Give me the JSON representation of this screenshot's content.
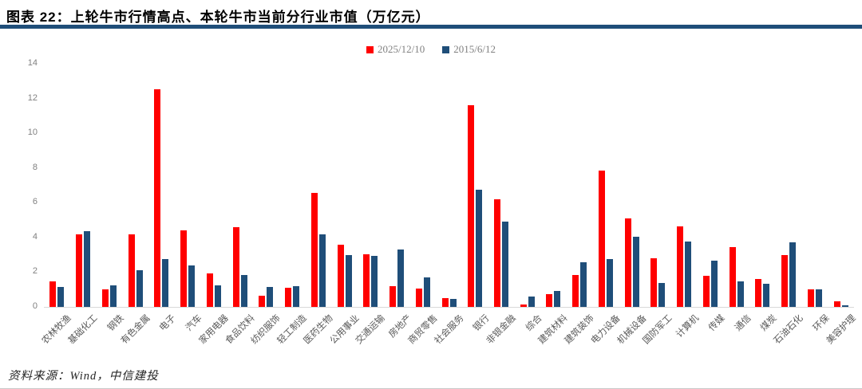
{
  "header": {
    "title": "图表 22：上轮牛市行情高点、本轮牛市当前分行业市值（万亿元）"
  },
  "footer": {
    "source": "资料来源：Wind，中信建投"
  },
  "colors": {
    "accent_red": "#FF0000",
    "accent_blue": "#1F4E79",
    "header_rule": "#1F4E79",
    "axis_text": "#808080",
    "baseline": "#D9D9D9"
  },
  "chart_data": {
    "type": "bar",
    "title": "图表 22：上轮牛市行情高点、本轮牛市当前分行业市值（万亿元）",
    "xlabel": "",
    "ylabel": "",
    "ylim": [
      0,
      14
    ],
    "yticks": [
      0,
      2,
      4,
      6,
      8,
      10,
      12,
      14
    ],
    "grid": false,
    "legend_position": "top-center",
    "categories": [
      "农林牧渔",
      "基础化工",
      "钢铁",
      "有色金属",
      "电子",
      "汽车",
      "家用电器",
      "食品饮料",
      "纺织服饰",
      "轻工制造",
      "医药生物",
      "公用事业",
      "交通运输",
      "房地产",
      "商贸零售",
      "社会服务",
      "银行",
      "非银金融",
      "综合",
      "建筑材料",
      "建筑装饰",
      "电力设备",
      "机械设备",
      "国防军工",
      "计算机",
      "传媒",
      "通信",
      "煤炭",
      "石油石化",
      "环保",
      "美容护理"
    ],
    "series": [
      {
        "name": "2025/12/10",
        "color": "#FF0000",
        "values": [
          1.45,
          4.2,
          1.0,
          4.2,
          12.55,
          4.4,
          1.95,
          4.6,
          0.65,
          1.1,
          6.55,
          3.6,
          3.05,
          1.2,
          1.05,
          0.5,
          11.6,
          6.2,
          0.15,
          0.75,
          1.85,
          7.85,
          5.1,
          2.8,
          4.65,
          1.8,
          3.45,
          1.6,
          3.0,
          1.0,
          0.3
        ]
      },
      {
        "name": "2015/6/12",
        "color": "#1F4E79",
        "values": [
          1.15,
          4.35,
          1.25,
          2.1,
          2.75,
          2.4,
          1.25,
          1.85,
          1.15,
          1.2,
          4.2,
          3.0,
          2.95,
          3.3,
          1.7,
          0.45,
          6.75,
          4.9,
          0.6,
          0.9,
          2.55,
          2.75,
          4.05,
          1.4,
          3.75,
          2.65,
          1.45,
          1.35,
          3.7,
          1.0,
          0.1
        ]
      }
    ]
  }
}
